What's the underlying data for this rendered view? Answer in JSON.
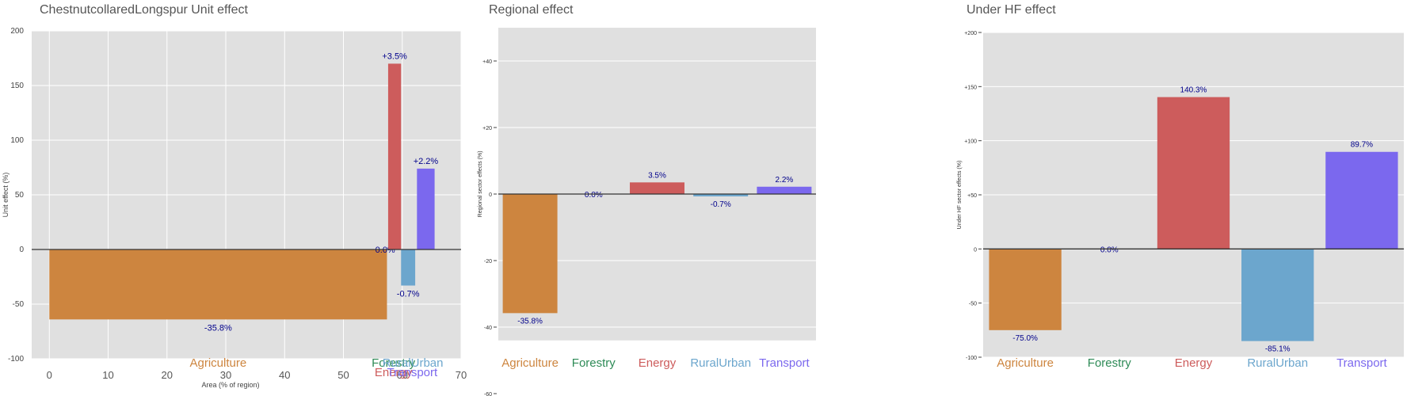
{
  "charts": [
    {
      "title": "ChestnutcollaredLongspur Unit effect",
      "chart_data": {
        "type": "bar",
        "xlabel": "Area (% of region)",
        "ylabel": "Unit effect (%)",
        "xlim": [
          -3,
          70
        ],
        "ylim": [
          -100,
          200
        ],
        "xticks": [
          0,
          10,
          20,
          30,
          40,
          50,
          60,
          70
        ],
        "yticks": [
          -100,
          -50,
          0,
          50,
          100,
          150,
          200
        ],
        "grid": true,
        "categories": [
          "Agriculture",
          "Forestry",
          "Energy",
          "RuralUrban",
          "Transport"
        ],
        "colors": [
          "#cd853f",
          "#2e8b57",
          "#cd5c5c",
          "#6ca6cd",
          "#7b68ee"
        ],
        "bars": [
          {
            "name": "Agriculture",
            "x_start": 0,
            "x_end": 57.4,
            "value": -64,
            "label": "-35.8%"
          },
          {
            "name": "Forestry",
            "x_start": 57.4,
            "x_end": 57.6,
            "value": 0,
            "label": "0.0%"
          },
          {
            "name": "Energy",
            "x_start": 57.6,
            "x_end": 59.8,
            "value": 170,
            "label": "+3.5%"
          },
          {
            "name": "RuralUrban",
            "x_start": 59.8,
            "x_end": 62.2,
            "value": -33,
            "label": "-0.7%"
          },
          {
            "name": "Transport",
            "x_start": 62.5,
            "x_end": 65.5,
            "value": 74,
            "label": "+2.2%"
          }
        ]
      }
    },
    {
      "title": "Regional effect",
      "chart_data": {
        "type": "bar",
        "ylabel": "Regional sector effects (%)",
        "ylim": [
          -60,
          50
        ],
        "yticks": [
          -60,
          -40,
          -20,
          0,
          20,
          40
        ],
        "ytick_labels": [
          "-60",
          "-40",
          "-20",
          "0",
          "+20",
          "+40"
        ],
        "grid": true,
        "categories": [
          "Agriculture",
          "Forestry",
          "Energy",
          "RuralUrban",
          "Transport"
        ],
        "values": [
          -35.8,
          0.0,
          3.5,
          -0.7,
          2.2
        ],
        "labels": [
          "-35.8%",
          "0.0%",
          "3.5%",
          "-0.7%",
          "2.2%"
        ],
        "colors": [
          "#cd853f",
          "#2e8b57",
          "#cd5c5c",
          "#6ca6cd",
          "#7b68ee"
        ]
      }
    },
    {
      "title": "Under HF effect",
      "chart_data": {
        "type": "bar",
        "ylabel": "Under HF sector effects (%)",
        "ylim": [
          -100,
          200
        ],
        "yticks": [
          -100,
          -50,
          0,
          50,
          100,
          150,
          200
        ],
        "ytick_labels": [
          "-100",
          "-50",
          "0",
          "+50",
          "+100",
          "+150",
          "+200"
        ],
        "grid": true,
        "categories": [
          "Agriculture",
          "Forestry",
          "Energy",
          "RuralUrban",
          "Transport"
        ],
        "values": [
          -75.0,
          0.0,
          140.3,
          -85.1,
          89.7
        ],
        "labels": [
          "-75.0%",
          "0.0%",
          "140.3%",
          "-85.1%",
          "89.7%"
        ],
        "colors": [
          "#cd853f",
          "#2e8b57",
          "#cd5c5c",
          "#6ca6cd",
          "#7b68ee"
        ]
      }
    }
  ]
}
